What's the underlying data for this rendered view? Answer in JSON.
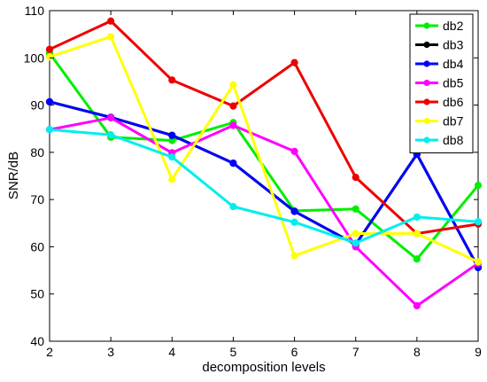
{
  "chart_data": {
    "type": "line",
    "title": "",
    "xlabel": "decomposition levels",
    "ylabel": "SNR/dB",
    "xlim": [
      2,
      9
    ],
    "ylim": [
      40,
      110
    ],
    "x": [
      2,
      3,
      4,
      5,
      6,
      7,
      8,
      9
    ],
    "xticks": [
      "2",
      "3",
      "4",
      "5",
      "6",
      "7",
      "8",
      "9"
    ],
    "yticks": [
      "40",
      "50",
      "60",
      "70",
      "80",
      "90",
      "100",
      "110"
    ],
    "grid": false,
    "legend_position": "top-right",
    "series": [
      {
        "name": "db2",
        "color": "#00ee00",
        "values": [
          101.0,
          83.2,
          82.5,
          86.3,
          67.6,
          68.0,
          57.4,
          73.0
        ]
      },
      {
        "name": "db3",
        "color": "#000000",
        "values": [
          90.7,
          87.4,
          83.6,
          77.7,
          67.5,
          60.5,
          79.6,
          55.6
        ]
      },
      {
        "name": "db4",
        "color": "#0000ff",
        "values": [
          90.7,
          87.4,
          83.6,
          77.7,
          67.5,
          60.5,
          79.6,
          55.6
        ]
      },
      {
        "name": "db5",
        "color": "#ff00ff",
        "values": [
          84.8,
          87.3,
          79.9,
          85.7,
          80.2,
          60.0,
          47.5,
          56.5
        ]
      },
      {
        "name": "db6",
        "color": "#ee0000",
        "values": [
          101.8,
          107.8,
          95.3,
          89.8,
          99.0,
          74.7,
          62.8,
          64.8
        ]
      },
      {
        "name": "db7",
        "color": "#ffff00",
        "values": [
          100.2,
          104.5,
          74.3,
          94.3,
          58.1,
          62.8,
          62.8,
          56.8
        ]
      },
      {
        "name": "db8",
        "color": "#00eeee",
        "values": [
          84.8,
          83.7,
          79.0,
          68.5,
          65.2,
          60.8,
          66.3,
          65.3
        ]
      }
    ]
  }
}
